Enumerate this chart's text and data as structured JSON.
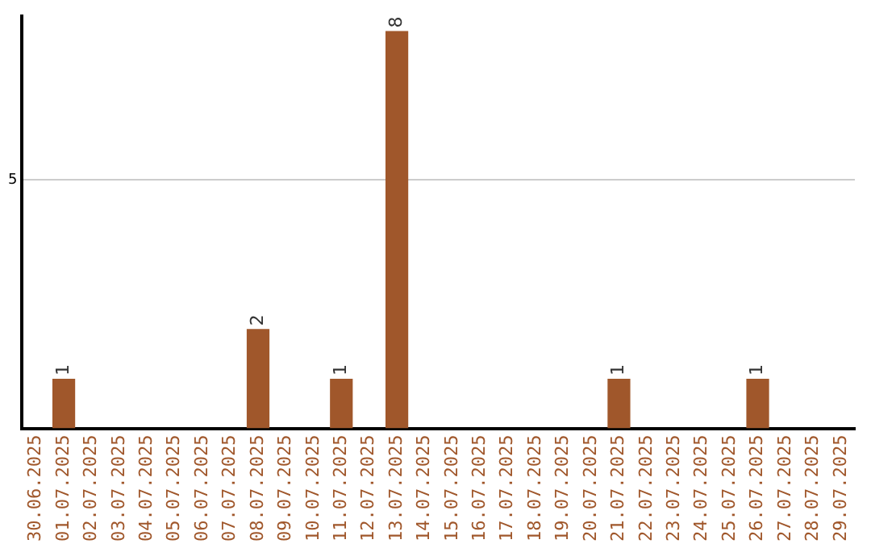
{
  "chart_data": {
    "type": "bar",
    "categories": [
      "30.06.2025",
      "01.07.2025",
      "02.07.2025",
      "03.07.2025",
      "04.07.2025",
      "05.07.2025",
      "06.07.2025",
      "07.07.2025",
      "08.07.2025",
      "09.07.2025",
      "10.07.2025",
      "11.07.2025",
      "12.07.2025",
      "13.07.2025",
      "14.07.2025",
      "15.07.2025",
      "16.07.2025",
      "17.07.2025",
      "18.07.2025",
      "19.07.2025",
      "20.07.2025",
      "21.07.2025",
      "22.07.2025",
      "23.07.2025",
      "24.07.2025",
      "25.07.2025",
      "26.07.2025",
      "27.07.2025",
      "28.07.2025",
      "29.07.2025"
    ],
    "values": [
      0,
      1,
      0,
      0,
      0,
      0,
      0,
      0,
      2,
      0,
      0,
      1,
      0,
      8,
      0,
      0,
      0,
      0,
      0,
      0,
      0,
      1,
      0,
      0,
      0,
      0,
      1,
      0,
      0,
      0
    ],
    "value_labels": [
      null,
      "1",
      null,
      null,
      null,
      null,
      null,
      null,
      "2",
      null,
      null,
      "1",
      null,
      "8",
      null,
      null,
      null,
      null,
      null,
      null,
      null,
      "1",
      null,
      null,
      null,
      null,
      "1",
      null,
      null,
      null
    ],
    "color": "#a0572b",
    "ylim": [
      0,
      8.3
    ],
    "yticks": [
      5
    ],
    "grid": "y",
    "legend": false
  }
}
